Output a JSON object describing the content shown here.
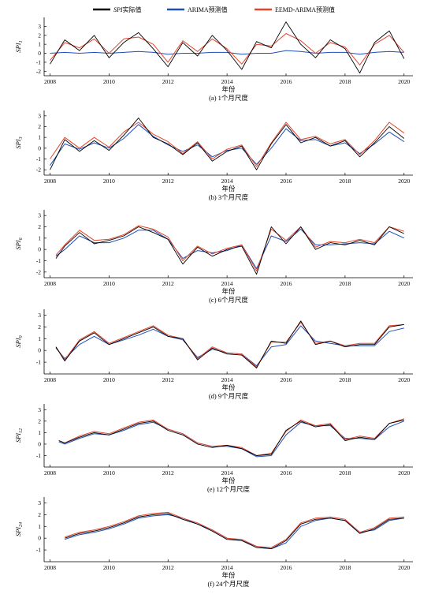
{
  "legend": [
    {
      "name_italic": "SPI",
      "name_rest": "实际值",
      "color": "#000000"
    },
    {
      "name_italic": "",
      "name_rest": "ARIMA预测值",
      "color": "#1f4fb8"
    },
    {
      "name_italic": "",
      "name_rest": "EEMD-ARIMA预测值",
      "color": "#e2452b"
    }
  ],
  "chart_data": [
    {
      "type": "line",
      "caption": "(a) 1个月尺度",
      "xlabel": "年份",
      "ylabel_base": "SPI",
      "ylabel_sub": "1",
      "xlim": [
        2007.8,
        2020.3
      ],
      "ylim": [
        -2.5,
        4
      ],
      "yticks": [
        3,
        2,
        1,
        0,
        -1,
        -2
      ],
      "xticks": [
        2008,
        2010,
        2012,
        2014,
        2016,
        2018,
        2020
      ],
      "x": [
        2008,
        2008.5,
        2009,
        2009.5,
        2010,
        2010.5,
        2011,
        2011.5,
        2012,
        2012.5,
        2013,
        2013.5,
        2014,
        2014.5,
        2015,
        2015.5,
        2016,
        2016.5,
        2017,
        2017.5,
        2018,
        2018.5,
        2019,
        2019.5,
        2020
      ],
      "series": [
        {
          "name": "SPI实际值",
          "color": "#000000",
          "values": [
            -1.2,
            1.5,
            0.3,
            2.0,
            -0.5,
            1.2,
            2.3,
            0.5,
            -1.5,
            1.2,
            -0.3,
            2.0,
            0.3,
            -1.8,
            1.3,
            0.6,
            3.5,
            1.0,
            -0.5,
            1.5,
            0.5,
            -2.2,
            1.2,
            2.5,
            -0.6
          ]
        },
        {
          "name": "ARIMA预测值",
          "color": "#1f4fb8",
          "values": [
            0.0,
            0.1,
            0.0,
            0.1,
            0.0,
            0.1,
            0.2,
            0.1,
            -0.1,
            0.0,
            0.0,
            0.1,
            0.1,
            -0.1,
            0.0,
            0.0,
            0.3,
            0.2,
            0.0,
            0.1,
            0.1,
            -0.1,
            0.1,
            0.2,
            0.1
          ]
        },
        {
          "name": "EEMD-ARIMA预测值",
          "color": "#e2452b",
          "values": [
            -0.8,
            1.2,
            0.6,
            1.6,
            0.0,
            1.6,
            1.8,
            1.0,
            -1.0,
            1.4,
            0.2,
            1.6,
            0.5,
            -1.2,
            1.0,
            0.8,
            2.2,
            1.4,
            0.0,
            1.2,
            0.7,
            -1.3,
            1.0,
            2.0,
            0.1
          ]
        }
      ]
    },
    {
      "type": "line",
      "caption": "(b) 3个月尺度",
      "xlabel": "年份",
      "ylabel_base": "SPI",
      "ylabel_sub": "3",
      "xlim": [
        2007.8,
        2020.3
      ],
      "ylim": [
        -2.5,
        3.5
      ],
      "yticks": [
        3,
        2,
        1,
        0,
        -1,
        -2
      ],
      "xticks": [
        2008,
        2010,
        2012,
        2014,
        2016,
        2018,
        2020
      ],
      "x": [
        2008,
        2008.5,
        2009,
        2009.5,
        2010,
        2010.5,
        2011,
        2011.5,
        2012,
        2012.5,
        2013,
        2013.5,
        2014,
        2014.5,
        2015,
        2015.5,
        2016,
        2016.5,
        2017,
        2017.5,
        2018,
        2018.5,
        2019,
        2019.5,
        2020
      ],
      "series": [
        {
          "name": "SPI实际值",
          "color": "#000000",
          "values": [
            -2.0,
            0.8,
            -0.3,
            0.7,
            -0.2,
            1.2,
            2.8,
            1.0,
            0.4,
            -0.6,
            0.5,
            -1.2,
            -0.3,
            0.2,
            -2.0,
            0.4,
            2.2,
            0.5,
            1.0,
            0.2,
            0.7,
            -0.8,
            0.5,
            2.0,
            0.9
          ]
        },
        {
          "name": "ARIMA预测值",
          "color": "#1f4fb8",
          "values": [
            -1.6,
            0.4,
            -0.1,
            0.5,
            0.0,
            0.9,
            2.2,
            1.1,
            0.3,
            -0.3,
            0.3,
            -0.8,
            -0.2,
            0.0,
            -1.5,
            0.0,
            1.8,
            0.7,
            0.8,
            0.2,
            0.5,
            -0.5,
            0.4,
            1.5,
            0.6
          ]
        },
        {
          "name": "EEMD-ARIMA预测值",
          "color": "#e2452b",
          "values": [
            -1.0,
            1.0,
            0.0,
            1.0,
            0.1,
            1.5,
            2.4,
            1.3,
            0.6,
            -0.5,
            0.6,
            -1.0,
            -0.1,
            0.3,
            -1.7,
            0.5,
            2.4,
            0.8,
            1.1,
            0.4,
            0.8,
            -0.6,
            0.7,
            2.4,
            1.4
          ]
        }
      ]
    },
    {
      "type": "line",
      "caption": "(c) 6个月尺度",
      "xlabel": "年份",
      "ylabel_base": "SPI",
      "ylabel_sub": "6",
      "xlim": [
        2007.8,
        2020.3
      ],
      "ylim": [
        -2.5,
        3.5
      ],
      "yticks": [
        3,
        2,
        1,
        0,
        -1,
        -2
      ],
      "xticks": [
        2008,
        2010,
        2012,
        2014,
        2016,
        2018,
        2020
      ],
      "x": [
        2008.2,
        2008.5,
        2009,
        2009.5,
        2010,
        2010.5,
        2011,
        2011.5,
        2012,
        2012.5,
        2013,
        2013.5,
        2014,
        2014.5,
        2015,
        2015.5,
        2016,
        2016.5,
        2017,
        2017.5,
        2018,
        2018.5,
        2019,
        2019.5,
        2020
      ],
      "series": [
        {
          "name": "SPI实际值",
          "color": "#000000",
          "values": [
            -0.8,
            0.3,
            1.5,
            0.5,
            0.8,
            1.2,
            2.0,
            1.5,
            0.9,
            -1.3,
            0.2,
            -0.6,
            0.0,
            0.3,
            -2.2,
            2.0,
            0.5,
            2.0,
            0.0,
            0.6,
            0.4,
            0.8,
            0.4,
            2.0,
            1.4
          ]
        },
        {
          "name": "ARIMA预测值",
          "color": "#1f4fb8",
          "values": [
            -0.6,
            0.0,
            1.2,
            0.6,
            0.6,
            1.0,
            1.7,
            1.7,
            0.9,
            -0.8,
            -0.1,
            -0.3,
            -0.1,
            0.4,
            -1.7,
            1.2,
            0.7,
            1.8,
            0.4,
            0.4,
            0.5,
            0.6,
            0.5,
            1.6,
            1.0
          ]
        },
        {
          "name": "EEMD-ARIMA预测值",
          "color": "#e2452b",
          "values": [
            -0.5,
            0.4,
            1.7,
            0.8,
            0.9,
            1.3,
            2.1,
            1.8,
            1.1,
            -1.0,
            0.3,
            -0.4,
            0.1,
            0.4,
            -1.9,
            1.8,
            0.8,
            2.0,
            0.2,
            0.7,
            0.6,
            0.9,
            0.6,
            2.0,
            1.6
          ]
        }
      ]
    },
    {
      "type": "line",
      "caption": "(d) 9个月尺度",
      "xlabel": "年份",
      "ylabel_base": "SPI",
      "ylabel_sub": "9",
      "xlim": [
        2007.8,
        2020.3
      ],
      "ylim": [
        -2,
        3.5
      ],
      "yticks": [
        3,
        2,
        1,
        0,
        -1
      ],
      "xticks": [
        2008,
        2010,
        2012,
        2014,
        2016,
        2018,
        2020
      ],
      "x": [
        2008.2,
        2008.5,
        2009,
        2009.5,
        2010,
        2010.5,
        2011,
        2011.5,
        2012,
        2012.5,
        2013,
        2013.5,
        2014,
        2014.5,
        2015,
        2015.5,
        2016,
        2016.5,
        2017,
        2017.5,
        2018,
        2018.5,
        2019,
        2019.5,
        2020
      ],
      "series": [
        {
          "name": "SPI实际值",
          "color": "#000000",
          "values": [
            0.3,
            -0.9,
            0.8,
            1.5,
            0.5,
            1.0,
            1.5,
            2.0,
            1.2,
            1.0,
            -0.8,
            0.2,
            -0.3,
            -0.4,
            -1.5,
            0.8,
            0.6,
            2.5,
            0.5,
            0.8,
            0.3,
            0.5,
            0.5,
            2.0,
            2.2
          ]
        },
        {
          "name": "ARIMA预测值",
          "color": "#1f4fb8",
          "values": [
            0.2,
            -0.7,
            0.5,
            1.2,
            0.5,
            0.9,
            1.3,
            1.8,
            1.2,
            0.9,
            -0.6,
            0.1,
            -0.2,
            -0.3,
            -1.3,
            0.3,
            0.5,
            2.1,
            0.8,
            0.6,
            0.4,
            0.4,
            0.4,
            1.6,
            1.9
          ]
        },
        {
          "name": "EEMD-ARIMA预测值",
          "color": "#e2452b",
          "values": [
            0.3,
            -0.8,
            0.9,
            1.6,
            0.6,
            1.1,
            1.6,
            2.1,
            1.3,
            1.0,
            -0.7,
            0.3,
            -0.2,
            -0.3,
            -1.4,
            0.7,
            0.7,
            2.4,
            0.6,
            0.8,
            0.4,
            0.6,
            0.6,
            2.1,
            2.2
          ]
        }
      ]
    },
    {
      "type": "line",
      "caption": "(e) 12个月尺度",
      "xlabel": "年份",
      "ylabel_base": "SPI",
      "ylabel_sub": "12",
      "xlim": [
        2007.8,
        2020.3
      ],
      "ylim": [
        -2,
        3.5
      ],
      "yticks": [
        3,
        2,
        1,
        0,
        -1
      ],
      "xticks": [
        2008,
        2010,
        2012,
        2014,
        2016,
        2018,
        2020
      ],
      "x": [
        2008.3,
        2008.5,
        2009,
        2009.5,
        2010,
        2010.5,
        2011,
        2011.5,
        2012,
        2012.5,
        2013,
        2013.5,
        2014,
        2014.5,
        2015,
        2015.5,
        2016,
        2016.5,
        2017,
        2017.5,
        2018,
        2018.5,
        2019,
        2019.5,
        2020
      ],
      "series": [
        {
          "name": "SPI实际值",
          "color": "#000000",
          "values": [
            0.3,
            0.1,
            0.6,
            1.0,
            0.8,
            1.3,
            1.8,
            2.0,
            1.2,
            0.8,
            0.0,
            -0.3,
            -0.1,
            -0.4,
            -1.0,
            -0.9,
            1.2,
            2.0,
            1.5,
            1.7,
            0.3,
            0.6,
            0.4,
            1.8,
            2.1
          ]
        },
        {
          "name": "ARIMA预测值",
          "color": "#1f4fb8",
          "values": [
            0.2,
            0.0,
            0.5,
            0.9,
            0.8,
            1.2,
            1.7,
            1.9,
            1.3,
            0.9,
            0.1,
            -0.2,
            -0.2,
            -0.4,
            -1.1,
            -1.0,
            0.8,
            1.9,
            1.6,
            1.6,
            0.5,
            0.5,
            0.4,
            1.5,
            2.0
          ]
        },
        {
          "name": "EEMD-ARIMA预测值",
          "color": "#e2452b",
          "values": [
            0.3,
            0.1,
            0.7,
            1.1,
            0.9,
            1.4,
            1.9,
            2.1,
            1.3,
            0.9,
            0.1,
            -0.2,
            -0.1,
            -0.3,
            -1.0,
            -0.8,
            1.1,
            2.1,
            1.6,
            1.8,
            0.4,
            0.7,
            0.5,
            1.8,
            2.2
          ]
        }
      ]
    },
    {
      "type": "line",
      "caption": "(f) 24个月尺度",
      "xlabel": "年份",
      "ylabel_base": "SPI",
      "ylabel_sub": "24",
      "xlim": [
        2007.8,
        2020.3
      ],
      "ylim": [
        -2,
        3.5
      ],
      "yticks": [
        3,
        2,
        1,
        0,
        -1
      ],
      "xticks": [
        2008,
        2010,
        2012,
        2014,
        2016,
        2018,
        2020
      ],
      "x": [
        2008.5,
        2009,
        2009.5,
        2010,
        2010.5,
        2011,
        2011.5,
        2012,
        2012.5,
        2013,
        2013.5,
        2014,
        2014.5,
        2015,
        2015.5,
        2016,
        2016.5,
        2017,
        2017.5,
        2018,
        2018.5,
        2019,
        2019.5,
        2020
      ],
      "series": [
        {
          "name": "SPI实际值",
          "color": "#000000",
          "values": [
            0.0,
            0.4,
            0.6,
            0.9,
            1.3,
            1.8,
            2.0,
            2.1,
            1.6,
            1.2,
            0.6,
            -0.1,
            -0.2,
            -0.8,
            -0.9,
            -0.2,
            1.2,
            1.6,
            1.7,
            1.5,
            0.4,
            0.8,
            1.6,
            1.7
          ]
        },
        {
          "name": "ARIMA预测值",
          "color": "#1f4fb8",
          "values": [
            -0.1,
            0.3,
            0.5,
            0.8,
            1.2,
            1.7,
            1.9,
            2.0,
            1.7,
            1.2,
            0.7,
            0.0,
            -0.2,
            -0.7,
            -0.9,
            -0.4,
            1.0,
            1.5,
            1.7,
            1.5,
            0.5,
            0.7,
            1.5,
            1.7
          ]
        },
        {
          "name": "EEMD-ARIMA预测值",
          "color": "#e2452b",
          "values": [
            0.1,
            0.5,
            0.7,
            1.0,
            1.4,
            1.9,
            2.1,
            2.2,
            1.7,
            1.3,
            0.7,
            0.0,
            -0.1,
            -0.7,
            -0.8,
            -0.1,
            1.3,
            1.7,
            1.8,
            1.6,
            0.5,
            0.9,
            1.7,
            1.8
          ]
        }
      ]
    }
  ]
}
